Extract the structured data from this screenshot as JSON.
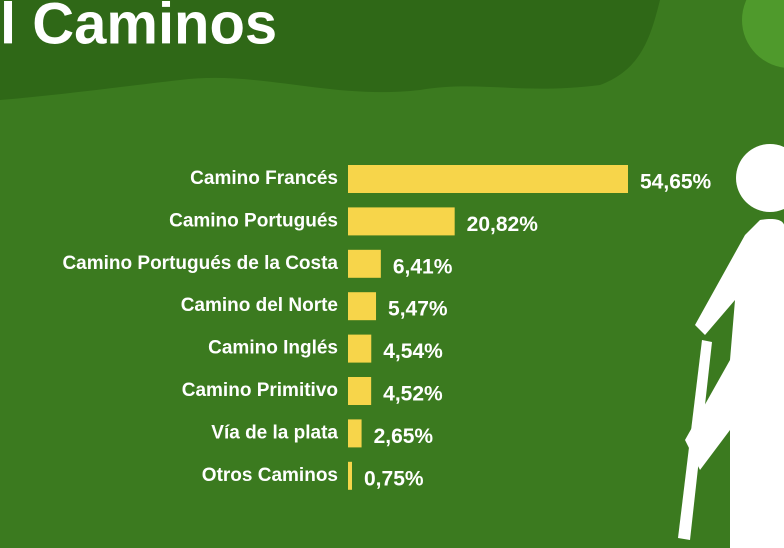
{
  "chart_data": {
    "type": "bar",
    "orientation": "horizontal",
    "title": "l Caminos",
    "categories": [
      "Camino Francés",
      "Camino Portugués",
      "Camino Portugués de la Costa",
      "Camino del Norte",
      "Camino Inglés",
      "Camino Primitivo",
      "Vía de la plata",
      "Otros Caminos"
    ],
    "values": [
      54.65,
      20.82,
      6.41,
      5.47,
      4.54,
      4.52,
      2.65,
      0.75
    ],
    "value_labels": [
      "54,65%",
      "20,82%",
      "6,41%",
      "5,47%",
      "4,54%",
      "4,52%",
      "2,65%",
      "0,75%"
    ],
    "color": "#f7d54a"
  }
}
